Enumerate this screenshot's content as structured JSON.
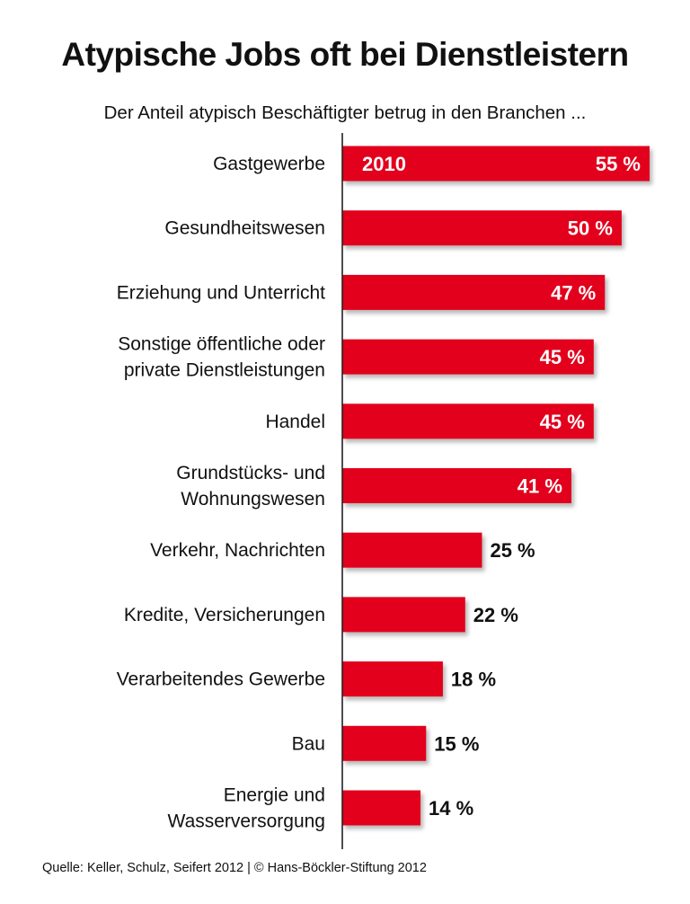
{
  "chart_data": {
    "type": "bar",
    "orientation": "horizontal",
    "title": "Atypische Jobs oft bei Dienstleistern",
    "subtitle": "Der Anteil atypisch Beschäftigter betrug in den Branchen ...",
    "series_label": "2010",
    "unit": "%",
    "categories": [
      "Gastgewerbe",
      "Gesundheitswesen",
      "Erziehung und Unterricht",
      "Sonstige öffentliche oder\nprivate Dienstleistungen",
      "Handel",
      "Grundstücks- und\nWohnungswesen",
      "Verkehr, Nachrichten",
      "Kredite, Versicherungen",
      "Verarbeitendes Gewerbe",
      "Bau",
      "Energie und\nWasserversorgung"
    ],
    "values": [
      55,
      50,
      47,
      45,
      45,
      41,
      25,
      22,
      18,
      15,
      14
    ],
    "value_labels": [
      "55 %",
      "50 %",
      "47 %",
      "45 %",
      "45 %",
      "41 %",
      "25 %",
      "22 %",
      "18 %",
      "15 %",
      "14 %"
    ],
    "xlim": [
      0,
      55
    ],
    "grid": false,
    "bar_color": "#e2001a",
    "source": "Quelle: Keller, Schulz, Seifert 2012 | © Hans-Böckler-Stiftung 2012"
  }
}
